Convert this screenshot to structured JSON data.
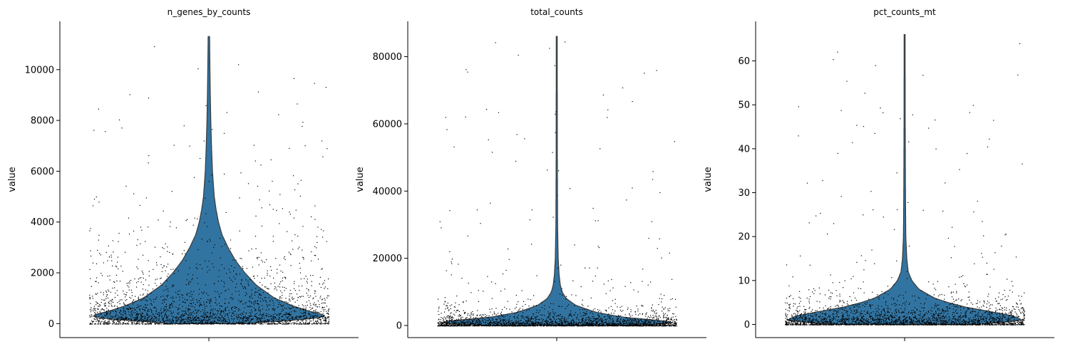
{
  "chart_data": [
    {
      "type": "violin",
      "title": "n_genes_by_counts",
      "ylabel": "value",
      "ylim": [
        -550,
        11900
      ],
      "yticks": [
        0,
        2000,
        4000,
        6000,
        8000,
        10000
      ],
      "ytick_labels": [
        "0",
        "2000",
        "4000",
        "6000",
        "8000",
        "10000"
      ],
      "y_max": 11300,
      "median": 600,
      "body_color": "#3274a1",
      "density_profile": [
        [
          0,
          0.3
        ],
        [
          100,
          0.6
        ],
        [
          200,
          0.88
        ],
        [
          300,
          0.98
        ],
        [
          400,
          0.92
        ],
        [
          500,
          0.83
        ],
        [
          700,
          0.7
        ],
        [
          1000,
          0.55
        ],
        [
          1500,
          0.4
        ],
        [
          2000,
          0.3
        ],
        [
          2500,
          0.22
        ],
        [
          3000,
          0.16
        ],
        [
          3500,
          0.11
        ],
        [
          4000,
          0.08
        ],
        [
          4500,
          0.06
        ],
        [
          5000,
          0.045
        ],
        [
          6000,
          0.03
        ],
        [
          7000,
          0.022
        ],
        [
          8000,
          0.016
        ],
        [
          9000,
          0.012
        ],
        [
          10000,
          0.009
        ],
        [
          11300,
          0.006
        ]
      ]
    },
    {
      "type": "violin",
      "title": "total_counts",
      "ylabel": "value",
      "ylim": [
        -3600,
        90500
      ],
      "yticks": [
        0,
        20000,
        40000,
        60000,
        80000
      ],
      "ytick_labels": [
        "0",
        "20000",
        "40000",
        "60000",
        "80000"
      ],
      "y_max": 86000,
      "median": 1500,
      "body_color": "#3274a1",
      "density_profile": [
        [
          0,
          0.55
        ],
        [
          500,
          0.92
        ],
        [
          1000,
          0.98
        ],
        [
          1500,
          0.85
        ],
        [
          2500,
          0.55
        ],
        [
          4000,
          0.32
        ],
        [
          6000,
          0.16
        ],
        [
          8000,
          0.08
        ],
        [
          10000,
          0.045
        ],
        [
          12000,
          0.03
        ],
        [
          15000,
          0.02
        ],
        [
          20000,
          0.012
        ],
        [
          30000,
          0.007
        ],
        [
          50000,
          0.005
        ],
        [
          86000,
          0.004
        ]
      ]
    },
    {
      "type": "violin",
      "title": "pct_counts_mt",
      "ylabel": "value",
      "ylim": [
        -3,
        69
      ],
      "yticks": [
        0,
        10,
        20,
        30,
        40,
        50,
        60
      ],
      "ytick_labels": [
        "0",
        "10",
        "20",
        "30",
        "40",
        "50",
        "60"
      ],
      "y_max": 66,
      "median": 2,
      "body_color": "#3274a1",
      "density_profile": [
        [
          0,
          0.55
        ],
        [
          0.5,
          0.85
        ],
        [
          1,
          0.98
        ],
        [
          2,
          0.9
        ],
        [
          3,
          0.7
        ],
        [
          4,
          0.5
        ],
        [
          5,
          0.36
        ],
        [
          6,
          0.25
        ],
        [
          8,
          0.12
        ],
        [
          10,
          0.06
        ],
        [
          12,
          0.03
        ],
        [
          15,
          0.018
        ],
        [
          20,
          0.01
        ],
        [
          30,
          0.007
        ],
        [
          45,
          0.005
        ],
        [
          66,
          0.004
        ]
      ]
    }
  ]
}
